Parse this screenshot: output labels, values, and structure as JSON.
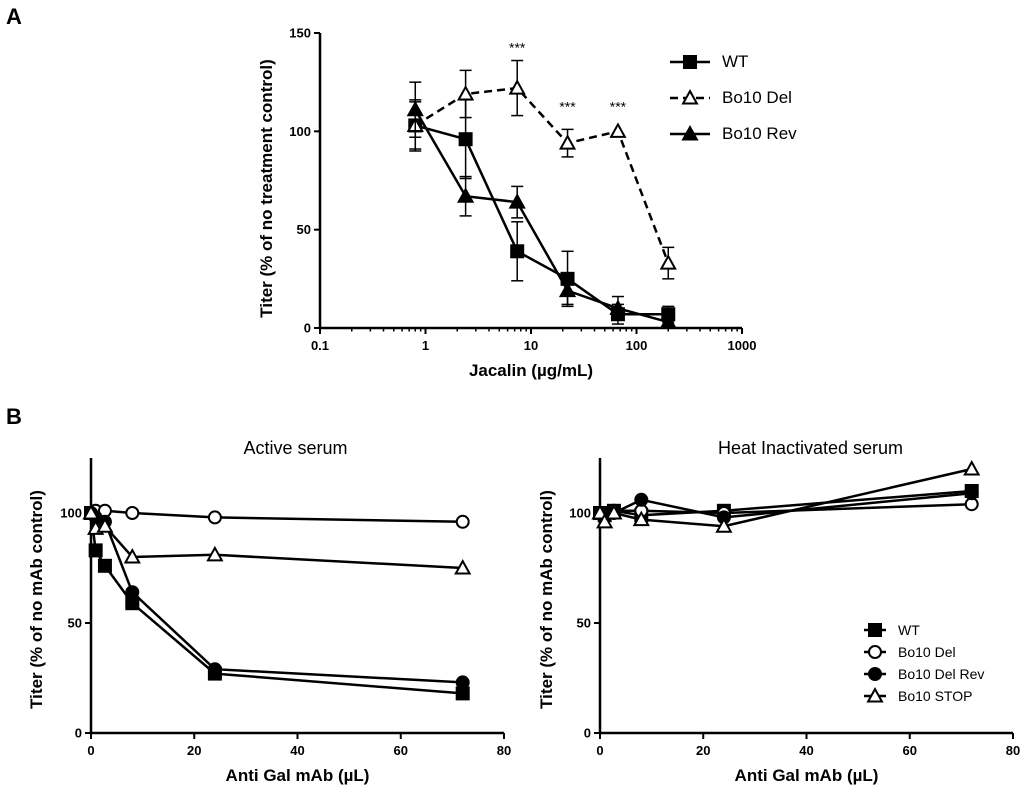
{
  "panels": {
    "a_letter": "A",
    "b_letter": "B"
  },
  "chart_data": [
    {
      "id": "A",
      "type": "line",
      "title": "",
      "xlabel": "Jacalin (µg/mL)",
      "ylabel": "Titer (% of no treatment control)",
      "xscale": "log",
      "xlim": [
        0.1,
        1000
      ],
      "ylim": [
        0,
        150
      ],
      "xticks": [
        0.1,
        1,
        10,
        100,
        1000
      ],
      "xtick_labels": [
        "0.1",
        "1",
        "10",
        "100",
        "1000"
      ],
      "yticks": [
        0,
        50,
        100,
        150
      ],
      "ytick_labels": [
        "0",
        "50",
        "100",
        "150"
      ],
      "legend_position": "top-right",
      "series": [
        {
          "name": "WT",
          "marker": "square",
          "filled": true,
          "dashed": false,
          "x": [
            0.8,
            2.4,
            7.4,
            22.2,
            66.7,
            200
          ],
          "y": [
            103,
            96,
            39,
            25,
            7,
            7
          ],
          "err": [
            13,
            20,
            15,
            14,
            5,
            4
          ]
        },
        {
          "name": "Bo10 Del",
          "marker": "triangle",
          "filled": false,
          "dashed": true,
          "x": [
            0.8,
            2.4,
            7.4,
            22.2,
            66.7,
            200
          ],
          "y": [
            103,
            119,
            122,
            94,
            100,
            33
          ],
          "err": [
            12,
            12,
            14,
            7,
            0,
            8
          ]
        },
        {
          "name": "Bo10 Rev",
          "marker": "triangle",
          "filled": true,
          "dashed": false,
          "x": [
            0.8,
            2.4,
            7.4,
            22.2,
            66.7,
            200
          ],
          "y": [
            111,
            67,
            64,
            19,
            10,
            3
          ],
          "err": [
            14,
            10,
            8,
            7,
            6,
            2
          ]
        }
      ],
      "annotations": [
        {
          "text": "***",
          "x": 7.4,
          "y": 140
        },
        {
          "text": "***",
          "x": 22.2,
          "y": 110
        },
        {
          "text": "***",
          "x": 66.7,
          "y": 110
        }
      ]
    },
    {
      "id": "B-left",
      "type": "line",
      "title": "Active serum",
      "xlabel": "Anti Gal mAb (µL)",
      "ylabel": "Titer (% of no mAb control)",
      "xlim": [
        0,
        80
      ],
      "ylim": [
        0,
        125
      ],
      "xticks": [
        0,
        20,
        40,
        60,
        80
      ],
      "xtick_labels": [
        "0",
        "20",
        "40",
        "60",
        "80"
      ],
      "yticks": [
        0,
        50,
        100
      ],
      "ytick_labels": [
        "0",
        "50",
        "100"
      ],
      "series": [
        {
          "name": "WT",
          "marker": "square",
          "filled": true,
          "x": [
            0,
            0.9,
            2.7,
            8,
            24,
            72
          ],
          "y": [
            100,
            83,
            76,
            59,
            27,
            18
          ]
        },
        {
          "name": "Bo10 Del",
          "marker": "circle",
          "filled": false,
          "x": [
            0,
            0.9,
            2.7,
            8,
            24,
            72
          ],
          "y": [
            100,
            101,
            101,
            100,
            98,
            96
          ]
        },
        {
          "name": "Bo10 Del Rev",
          "marker": "circle",
          "filled": true,
          "x": [
            0,
            0.9,
            2.7,
            8,
            24,
            72
          ],
          "y": [
            100,
            98,
            96,
            64,
            29,
            23
          ]
        },
        {
          "name": "Bo10 STOP",
          "marker": "triangle",
          "filled": false,
          "x": [
            0,
            0.9,
            2.7,
            8,
            24,
            72
          ],
          "y": [
            100,
            93,
            94,
            80,
            81,
            75
          ]
        }
      ]
    },
    {
      "id": "B-right",
      "type": "line",
      "title": "Heat Inactivated serum",
      "xlabel": "Anti Gal mAb (µL)",
      "ylabel": "Titer (% of no mAb control)",
      "xlim": [
        0,
        80
      ],
      "ylim": [
        0,
        125
      ],
      "xticks": [
        0,
        20,
        40,
        60,
        80
      ],
      "xtick_labels": [
        "0",
        "20",
        "40",
        "60",
        "80"
      ],
      "yticks": [
        0,
        50,
        100
      ],
      "ytick_labels": [
        "0",
        "50",
        "100"
      ],
      "legend_position": "bottom-right",
      "series": [
        {
          "name": "WT",
          "marker": "square",
          "filled": true,
          "x": [
            0,
            0.9,
            2.7,
            8,
            24,
            72
          ],
          "y": [
            100,
            99,
            101,
            99,
            101,
            110
          ]
        },
        {
          "name": "Bo10 Del",
          "marker": "circle",
          "filled": false,
          "x": [
            0,
            0.9,
            2.7,
            8,
            24,
            72
          ],
          "y": [
            100,
            99,
            101,
            101,
            100,
            104
          ]
        },
        {
          "name": "Bo10 Del Rev",
          "marker": "circle",
          "filled": true,
          "x": [
            0,
            0.9,
            2.7,
            8,
            24,
            72
          ],
          "y": [
            100,
            98,
            100,
            106,
            98,
            109
          ]
        },
        {
          "name": "Bo10 STOP",
          "marker": "triangle",
          "filled": false,
          "x": [
            0,
            0.9,
            2.7,
            8,
            24,
            72
          ],
          "y": [
            100,
            96,
            100,
            97,
            94,
            120
          ]
        }
      ]
    }
  ]
}
